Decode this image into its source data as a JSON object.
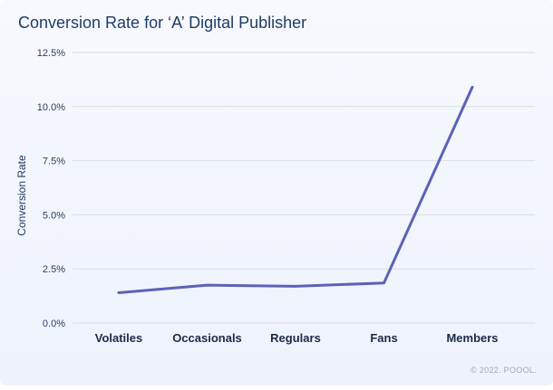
{
  "chart_data": {
    "type": "line",
    "title": "Conversion Rate for ‘A’ Digital Publisher",
    "xlabel": "",
    "ylabel": "Conversion Rate",
    "categories": [
      "Volatiles",
      "Occasionals",
      "Regulars",
      "Fans",
      "Members"
    ],
    "series": [
      {
        "values": [
          1.4,
          1.75,
          1.7,
          1.85,
          10.9
        ]
      }
    ],
    "ylim": [
      0,
      12.5
    ],
    "yticks": [
      0,
      2.5,
      5.0,
      7.5,
      10.0,
      12.5
    ],
    "ytick_labels": [
      "0.0%",
      "2.5%",
      "5.0%",
      "7.5%",
      "10.0%",
      "12.5%"
    ],
    "grid": true,
    "legend": "none",
    "colors": {
      "line": "#5b62b8"
    }
  },
  "footer": {
    "copyright": "© 2022. POOOL."
  }
}
